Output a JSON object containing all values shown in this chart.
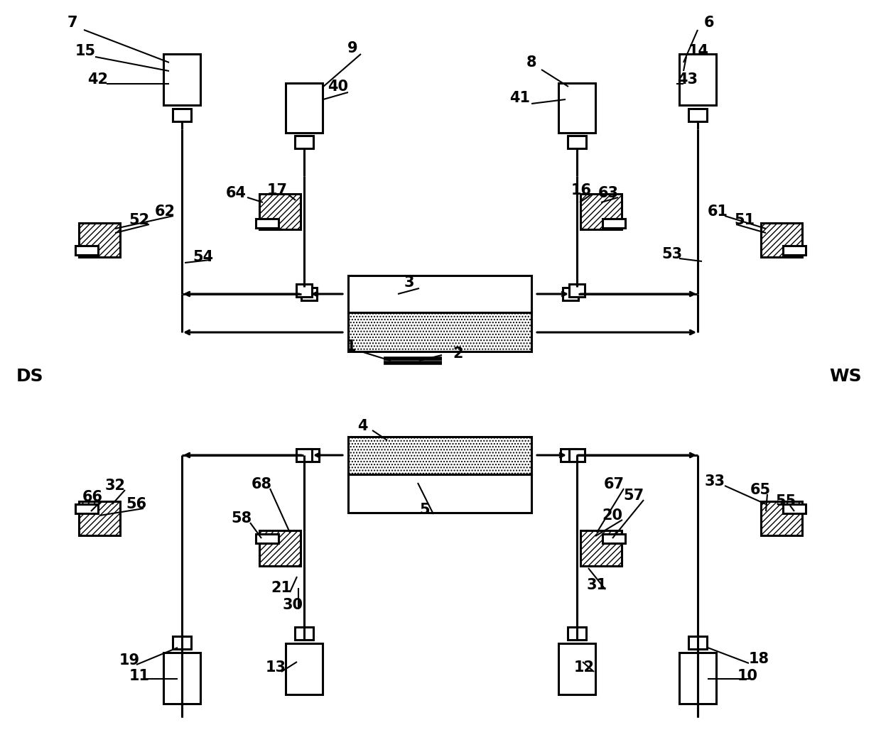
{
  "bg": "#ffffff",
  "lc": "#000000",
  "lw": 2.2,
  "figsize": [
    12.4,
    10.59
  ],
  "dpi": 100
}
